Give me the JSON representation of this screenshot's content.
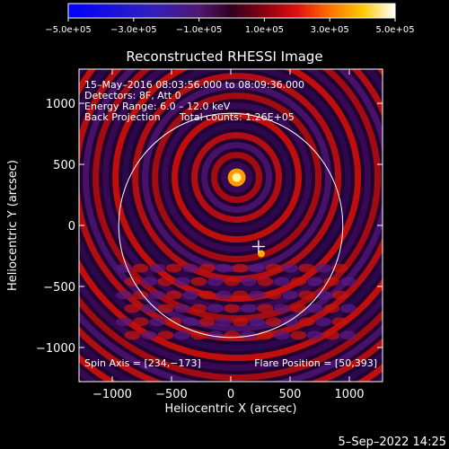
{
  "chart_data": {
    "type": "heatmap",
    "title": "Reconstructed RHESSI Image",
    "xlabel": "Heliocentric X (arcsec)",
    "ylabel": "Heliocentric Y (arcsec)",
    "xlim": [
      -1280,
      1280
    ],
    "ylim": [
      -1280,
      1280
    ],
    "xticks": [
      -1000,
      -500,
      0,
      500,
      1000
    ],
    "yticks": [
      1000,
      500,
      0,
      -500,
      -1000
    ],
    "xtick_labels": [
      "−1000",
      "−500",
      "0",
      "500",
      "1000"
    ],
    "ytick_labels": [
      "1000",
      "500",
      "0",
      "−500",
      "−1000"
    ],
    "colorbar": {
      "range": [
        -500000,
        500000
      ],
      "tick_values": [
        -500000,
        -300000,
        -100000,
        100000,
        300000,
        500000
      ],
      "tick_labels": [
        "−5.0e+05",
        "−3.0e+05",
        "−1.0e+05",
        "1.0e+05",
        "3.0e+05",
        "5.0e+05"
      ]
    },
    "annotations": [
      "15–May–2016 08:03:56.000 to 08:09:36.000",
      "Detectors: 8F, Att 0",
      "Energy Range: 6.0 – 12.0 keV",
      "Back Projection",
      "Total counts: 1.26E+05"
    ],
    "spin_axis_label": "Spin Axis = [234,−173]",
    "flare_position_label": "Flare Position = [50,393]",
    "spin_axis": [
      234,
      -173
    ],
    "flare_position": [
      50,
      393
    ],
    "solar_limb_radius_arcsec": 945,
    "date_stamp": "5–Sep–2022 14:25"
  }
}
